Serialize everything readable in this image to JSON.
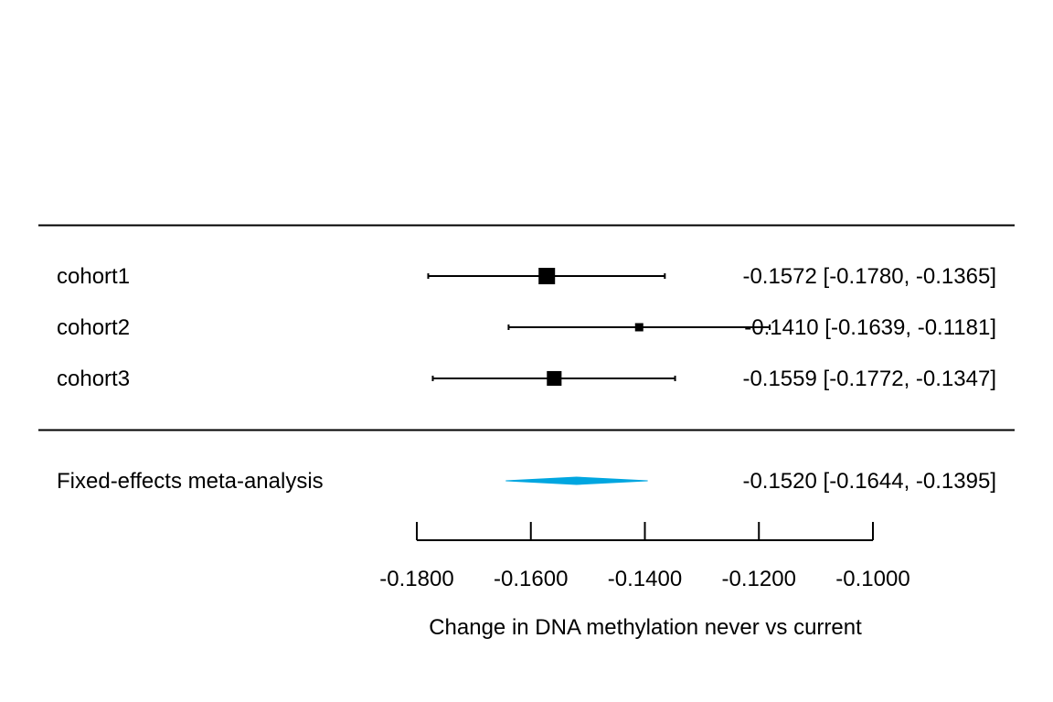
{
  "chart_data": {
    "type": "forest",
    "xlabel": "Change in DNA methylation never vs current",
    "xlim": [
      -0.18,
      -0.1
    ],
    "x_ticks": [
      -0.18,
      -0.16,
      -0.14,
      -0.12,
      -0.1
    ],
    "x_tick_labels": [
      "-0.1800",
      "-0.1600",
      "-0.1400",
      "-0.1200",
      "-0.1000"
    ],
    "studies": [
      {
        "label": "cohort1",
        "estimate": -0.1572,
        "lower": -0.178,
        "upper": -0.1365,
        "text": "-0.1572 [-0.1780, -0.1365]",
        "weight": 1.0
      },
      {
        "label": "cohort2",
        "estimate": -0.141,
        "lower": -0.1639,
        "upper": -0.1181,
        "text": "-0.1410 [-0.1639, -0.1181]",
        "weight": 0.25
      },
      {
        "label": "cohort3",
        "estimate": -0.1559,
        "lower": -0.1772,
        "upper": -0.1347,
        "text": "-0.1559 [-0.1772, -0.1347]",
        "weight": 0.8
      }
    ],
    "summary": {
      "label": "Fixed-effects meta-analysis",
      "estimate": -0.152,
      "lower": -0.1644,
      "upper": -0.1395,
      "text": "-0.1520 [-0.1644, -0.1395]",
      "color": "#00a6e0"
    }
  }
}
